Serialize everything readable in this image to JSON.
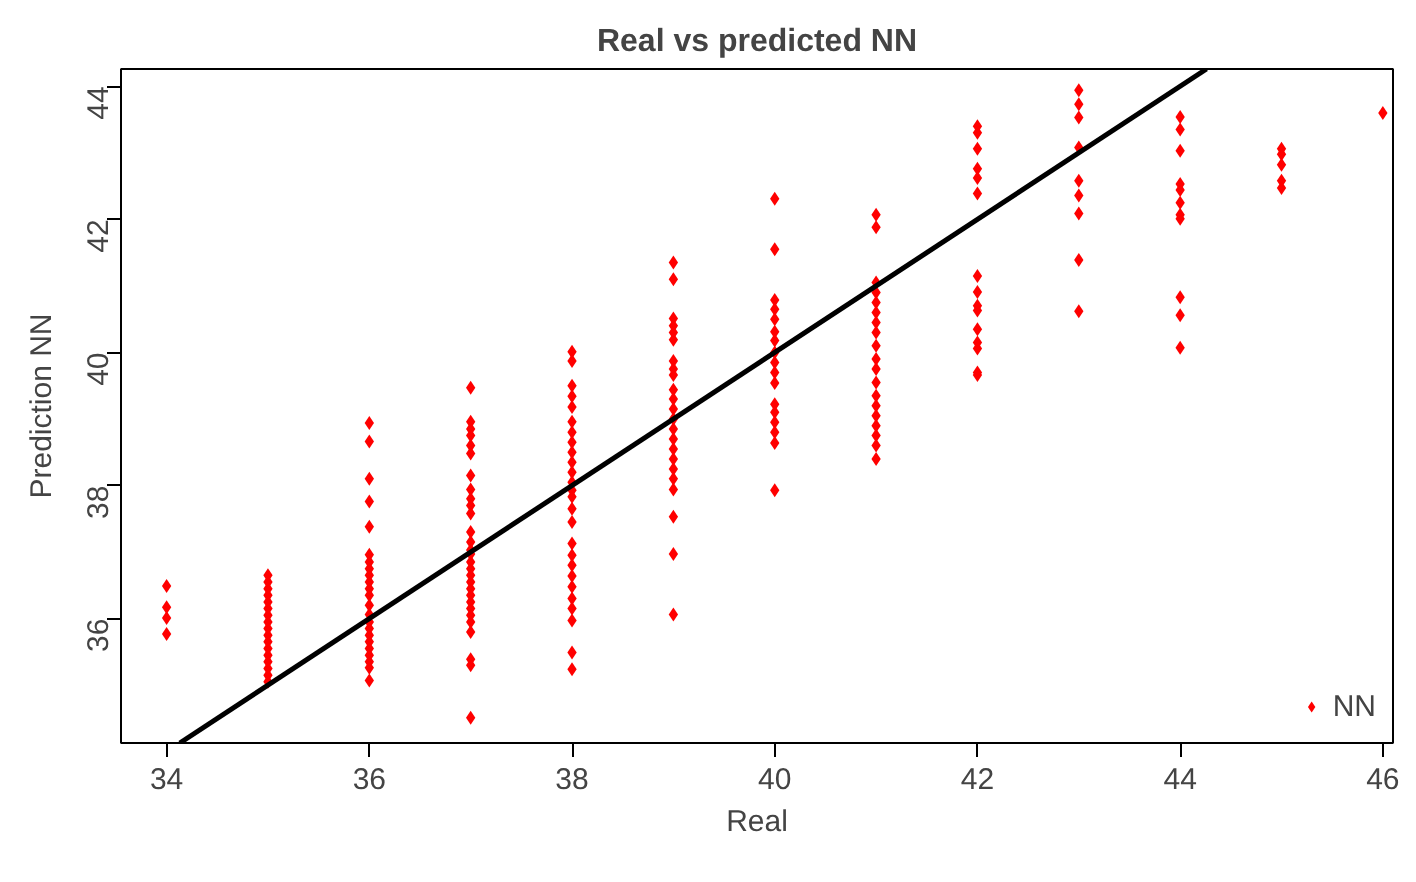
{
  "chart_data": {
    "type": "scatter",
    "title": "Real vs predicted NN",
    "xlabel": "Real",
    "ylabel": "Prediction NN",
    "xlim": [
      33.55,
      46.1
    ],
    "ylim": [
      34.13,
      44.26
    ],
    "xticks": [
      34,
      36,
      38,
      40,
      42,
      44,
      46
    ],
    "yticks": [
      36,
      38,
      40,
      42,
      44
    ],
    "grid": false,
    "legend": "bottom right",
    "series": [
      {
        "name": "NN",
        "marker": "diamond",
        "color": "#ff0000",
        "x": [
          34,
          34,
          34,
          34,
          35,
          35,
          35,
          35,
          35,
          35,
          35,
          35,
          35,
          35,
          35,
          35,
          35,
          35,
          35,
          35,
          35,
          36,
          36,
          36,
          36,
          36,
          36,
          36,
          36,
          36,
          36,
          36,
          36,
          36,
          36,
          36,
          36,
          36,
          36,
          36,
          36,
          36,
          36,
          36,
          37,
          37,
          37,
          37,
          37,
          37,
          37,
          37,
          37,
          37,
          37,
          37,
          37,
          37,
          37,
          37,
          37,
          37,
          37,
          37,
          37,
          37,
          37,
          37,
          37,
          37,
          37,
          37,
          37,
          38,
          38,
          38,
          38,
          38,
          38,
          38,
          38,
          38,
          38,
          38,
          38,
          38,
          38,
          38,
          38,
          38,
          38,
          38,
          38,
          38,
          38,
          38,
          38,
          38,
          38,
          39,
          39,
          39,
          39,
          39,
          39,
          39,
          39,
          39,
          39,
          39,
          39,
          39,
          39,
          39,
          39,
          39,
          39,
          39,
          39,
          39,
          39,
          39,
          40,
          40,
          40,
          40,
          40,
          40,
          40,
          40,
          40,
          40,
          40,
          40,
          40,
          40,
          40,
          40,
          40,
          41,
          41,
          41,
          41,
          41,
          41,
          41,
          41,
          41,
          41,
          41,
          41,
          41,
          41,
          41,
          41,
          41,
          41,
          41,
          42,
          42,
          42,
          42,
          42,
          42,
          42,
          42,
          42,
          42,
          42,
          42,
          42,
          42,
          42,
          43,
          43,
          43,
          43,
          43,
          43,
          43,
          43,
          43,
          44,
          44,
          44,
          44,
          44,
          44,
          44,
          44,
          44,
          44,
          44,
          45,
          45,
          45,
          45,
          45,
          46
        ],
        "values": [
          36.49,
          36.17,
          36.01,
          35.77,
          36.65,
          36.55,
          36.45,
          36.35,
          36.25,
          36.15,
          36.05,
          35.95,
          35.85,
          35.75,
          35.65,
          35.55,
          35.45,
          35.35,
          35.25,
          35.15,
          35.05,
          38.94,
          38.66,
          38.1,
          37.76,
          37.38,
          36.96,
          36.85,
          36.75,
          36.65,
          36.55,
          36.45,
          36.35,
          36.2,
          36.06,
          35.95,
          35.85,
          35.75,
          35.65,
          35.55,
          35.45,
          35.35,
          35.26,
          35.07,
          39.47,
          38.96,
          38.85,
          38.75,
          38.6,
          38.48,
          38.15,
          37.94,
          37.8,
          37.7,
          37.58,
          37.3,
          37.15,
          37.03,
          36.97,
          36.85,
          36.75,
          36.65,
          36.55,
          36.45,
          36.35,
          36.25,
          36.15,
          36.05,
          35.95,
          35.8,
          35.39,
          35.3,
          34.51,
          40.01,
          39.87,
          39.5,
          39.34,
          39.18,
          38.96,
          38.8,
          38.65,
          38.5,
          38.35,
          38.2,
          38.05,
          37.93,
          37.83,
          37.65,
          37.45,
          37.13,
          36.95,
          36.8,
          36.64,
          36.48,
          36.3,
          36.15,
          35.97,
          35.49,
          35.24,
          41.35,
          41.1,
          40.51,
          40.4,
          40.3,
          40.19,
          39.87,
          39.75,
          39.66,
          39.44,
          39.3,
          39.15,
          39.0,
          38.85,
          38.7,
          38.55,
          38.4,
          38.25,
          38.1,
          37.94,
          37.53,
          36.97,
          36.06,
          42.31,
          41.55,
          40.79,
          40.65,
          40.5,
          40.31,
          40.18,
          40.0,
          39.85,
          39.7,
          39.54,
          39.22,
          39.1,
          38.95,
          38.8,
          38.64,
          37.93,
          42.07,
          41.88,
          41.05,
          40.9,
          40.75,
          40.6,
          40.45,
          40.3,
          40.1,
          39.9,
          39.75,
          39.55,
          39.35,
          39.2,
          39.05,
          38.9,
          38.75,
          38.6,
          38.4,
          43.4,
          43.3,
          43.06,
          42.76,
          42.62,
          42.39,
          41.15,
          40.91,
          40.7,
          40.63,
          40.35,
          40.15,
          40.06,
          39.7,
          39.66,
          43.94,
          43.73,
          43.53,
          43.08,
          42.58,
          42.36,
          42.09,
          41.39,
          40.62,
          43.54,
          43.35,
          43.03,
          42.53,
          42.44,
          42.25,
          42.07,
          42.01,
          40.83,
          40.56,
          40.07,
          43.06,
          42.98,
          42.82,
          42.58,
          42.47,
          43.6
        ]
      },
      {
        "type": "line",
        "color": "#000000",
        "x": [
          34.13,
          44.26
        ],
        "values": [
          34.13,
          44.26
        ]
      }
    ]
  }
}
